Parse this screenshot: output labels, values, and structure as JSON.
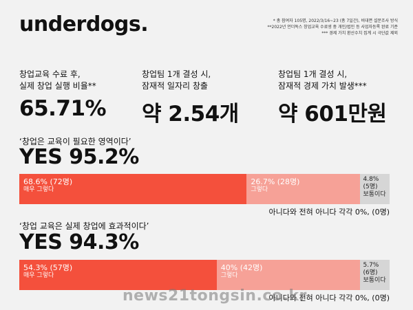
{
  "brand": {
    "logo": "underdogs."
  },
  "notes": [
    "* 총 참여자 105명, 2022/3/16~23 (총 7일간), 비대면 설문조사 방식",
    "**2022년 언더독스 창업교육 수료생 중 개인/법인 등 사업자등록 완료 기준",
    "*** 경제 가치 환산수치 집계 시 극단값 제외"
  ],
  "stats": [
    {
      "label1": "창업교육 수료 후,",
      "label2": "실제 창업 실행 비율**",
      "value": "65.71%"
    },
    {
      "label1": "창업팀 1개 결성 시,",
      "label2": "잠재적 일자리 창출",
      "value": "약 2.54개"
    },
    {
      "label1": "창업팀 1개 결성 시,",
      "label2": "잠재적 경제 가치 발생***",
      "value": "약 601만원"
    }
  ],
  "surveys": [
    {
      "question": "‘창업은 교육이  필요한 영역이다’",
      "yes": "YES 95.2%",
      "segments": [
        {
          "pct": "68.6% (72명)",
          "desc": "매우 그렇다",
          "share": 68.6
        },
        {
          "pct": "26.7% (28명)",
          "desc": "그렇다",
          "share": 26.7
        },
        {
          "pct": "4.8%",
          "count": "(5명)",
          "desc": "보통이다",
          "share": 4.8
        }
      ],
      "footnote": "아니다와 전혀 아니다 각각 0%, (0명)"
    },
    {
      "question": "‘창업 교육은 실제 창업에 효과적이다’",
      "yes": "YES 94.3%",
      "segments": [
        {
          "pct": "54.3% (57명)",
          "desc": "매우 그렇다",
          "share": 54.3
        },
        {
          "pct": "40% (42명)",
          "desc": "그렇다",
          "share": 40
        },
        {
          "pct": "5.7%",
          "count": "(6명)",
          "desc": "보통이다",
          "share": 5.7
        }
      ],
      "footnote": "아니다와 전혀 아니다 각각 0%, (0명)"
    }
  ],
  "watermark": "news21tongsin.co.kr",
  "colors": {
    "strong": "#f4503c",
    "medium": "#f6a197",
    "neutral": "#d6d6d6"
  }
}
